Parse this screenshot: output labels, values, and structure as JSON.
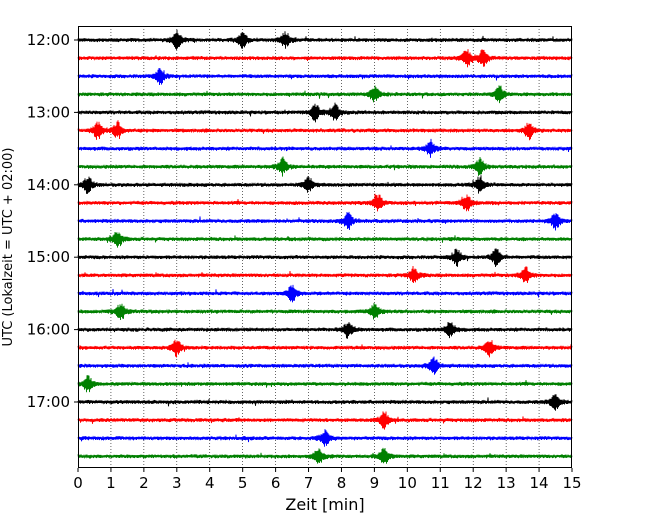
{
  "chart_data": {
    "type": "line",
    "title": "",
    "xlabel": "Zeit  [min]",
    "ylabel": "UTC (Lokalzeit = UTC + 02:00)",
    "xlim": [
      0,
      15
    ],
    "x_ticks": [
      0,
      1,
      2,
      3,
      4,
      5,
      6,
      7,
      8,
      9,
      10,
      11,
      12,
      13,
      14,
      15
    ],
    "x_tick_labels": [
      "0",
      "1",
      "2",
      "3",
      "4",
      "5",
      "6",
      "7",
      "8",
      "9",
      "10",
      "11",
      "12",
      "13",
      "14",
      "15"
    ],
    "y_tick_labels": [
      "12:00",
      "13:00",
      "14:00",
      "15:00",
      "16:00",
      "17:00"
    ],
    "grid": "vertical dotted",
    "trace_interval_minutes": 15,
    "colors_cycle": [
      "#000000",
      "#ff0000",
      "#0000ff",
      "#008000"
    ],
    "traces": [
      {
        "start": "12:00",
        "color": "#000000",
        "events_min": [
          3.0,
          5.0,
          6.3
        ]
      },
      {
        "start": "12:15",
        "color": "#ff0000",
        "events_min": [
          11.8,
          12.3
        ]
      },
      {
        "start": "12:30",
        "color": "#0000ff",
        "events_min": [
          2.5
        ]
      },
      {
        "start": "12:45",
        "color": "#008000",
        "events_min": [
          9.0,
          12.8
        ]
      },
      {
        "start": "13:00",
        "color": "#000000",
        "events_min": [
          7.2,
          7.8
        ]
      },
      {
        "start": "13:15",
        "color": "#ff0000",
        "events_min": [
          0.6,
          1.2,
          13.7
        ]
      },
      {
        "start": "13:30",
        "color": "#0000ff",
        "events_min": [
          10.7
        ]
      },
      {
        "start": "13:45",
        "color": "#008000",
        "events_min": [
          6.2,
          12.2
        ]
      },
      {
        "start": "14:00",
        "color": "#000000",
        "events_min": [
          0.3,
          7.0,
          12.2
        ]
      },
      {
        "start": "14:15",
        "color": "#ff0000",
        "events_min": [
          9.1,
          11.8
        ]
      },
      {
        "start": "14:30",
        "color": "#0000ff",
        "events_min": [
          8.2,
          14.5
        ]
      },
      {
        "start": "14:45",
        "color": "#008000",
        "events_min": [
          1.2
        ]
      },
      {
        "start": "15:00",
        "color": "#000000",
        "events_min": [
          11.5,
          12.7
        ]
      },
      {
        "start": "15:15",
        "color": "#ff0000",
        "events_min": [
          10.2,
          13.6
        ]
      },
      {
        "start": "15:30",
        "color": "#0000ff",
        "events_min": [
          6.5
        ]
      },
      {
        "start": "15:45",
        "color": "#008000",
        "events_min": [
          1.3,
          9.0
        ]
      },
      {
        "start": "16:00",
        "color": "#000000",
        "events_min": [
          8.2,
          11.3
        ]
      },
      {
        "start": "16:15",
        "color": "#ff0000",
        "events_min": [
          3.0,
          12.5
        ]
      },
      {
        "start": "16:30",
        "color": "#0000ff",
        "events_min": [
          10.8
        ]
      },
      {
        "start": "16:45",
        "color": "#008000",
        "events_min": [
          0.3
        ]
      },
      {
        "start": "17:00",
        "color": "#000000",
        "events_min": [
          14.5
        ]
      },
      {
        "start": "17:15",
        "color": "#ff0000",
        "events_min": [
          9.3
        ]
      },
      {
        "start": "17:30",
        "color": "#0000ff",
        "events_min": [
          7.5
        ]
      },
      {
        "start": "17:45",
        "color": "#008000",
        "events_min": [
          7.3,
          9.3
        ]
      }
    ]
  }
}
